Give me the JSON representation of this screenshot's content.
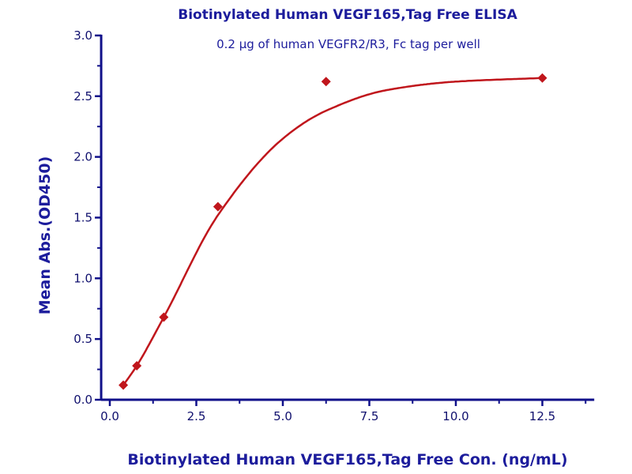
{
  "chart_data": {
    "type": "scatter",
    "title": "Biotinylated Human VEGF165,Tag Free ELISA",
    "subtitle": "0.2 μg of human VEGFR2/R3, Fc tag per well",
    "xlabel": "Biotinylated Human VEGF165,Tag Free Con. (ng/mL)",
    "ylabel": "Mean Abs.(OD450)",
    "xlim": [
      -0.25,
      14.0
    ],
    "ylim": [
      0,
      3.0
    ],
    "xticks": [
      "0.0",
      "2.5",
      "5.0",
      "7.5",
      "10.0",
      "12.5"
    ],
    "yticks": [
      "0.0",
      "0.5",
      "1.0",
      "1.5",
      "2.0",
      "2.5",
      "3.0"
    ],
    "grid": false,
    "series": [
      {
        "x": [
          0.39,
          0.78,
          1.56,
          3.125,
          6.25,
          12.5
        ],
        "y": [
          0.12,
          0.28,
          0.68,
          1.59,
          2.62,
          2.65
        ],
        "marker": "diamond",
        "fit": "sigmoidal curve",
        "color": "#c0161c"
      }
    ]
  }
}
